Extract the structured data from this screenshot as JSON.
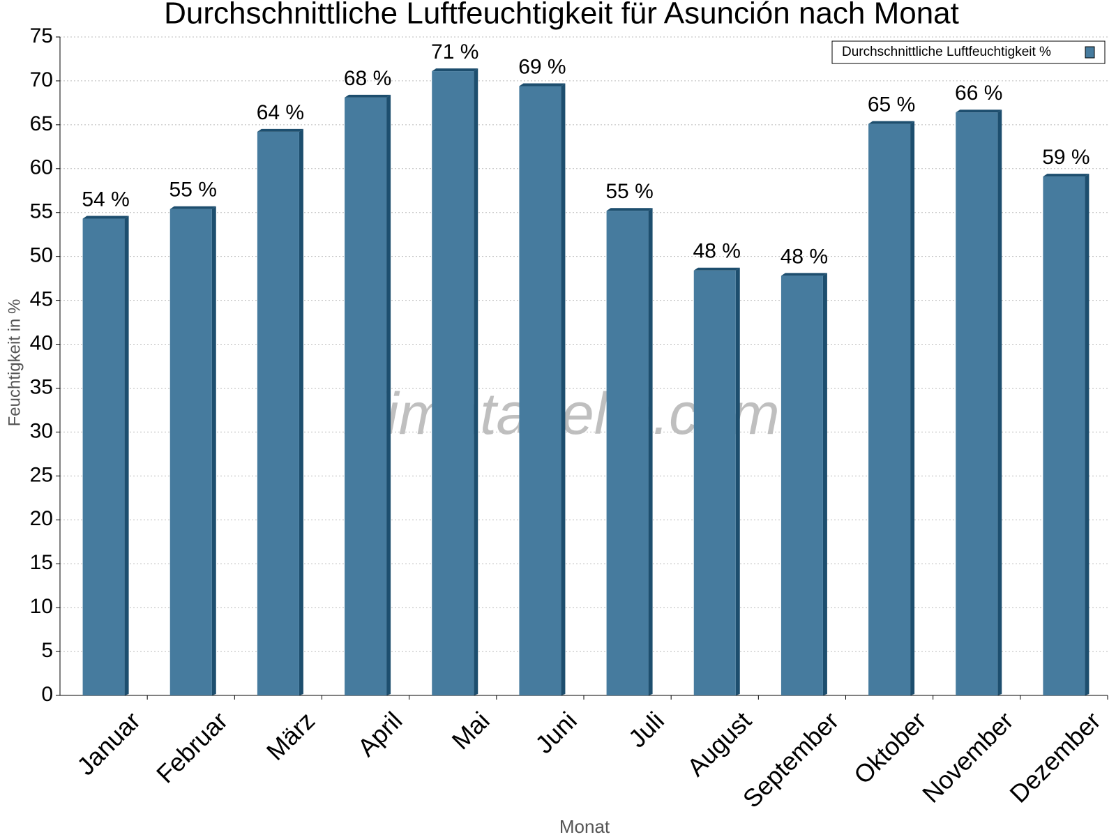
{
  "chart_data": {
    "type": "bar",
    "title": "Durchschnittliche Luftfeuchtigkeit für Asunción nach Monat",
    "watermark": "klimatabelle.com",
    "x_label": "Monat",
    "y_label": "Feuchtigkeit in %",
    "categories": [
      "Januar",
      "Februar",
      "März",
      "April",
      "Mai",
      "Juni",
      "Juli",
      "August",
      "September",
      "Oktober",
      "November",
      "Dezember"
    ],
    "series": [
      {
        "name": "Durchschnittliche Luftfeuchtigkeit %",
        "color": "#467b9e",
        "values": [
          54.3,
          55.4,
          64.2,
          68.1,
          71.1,
          69.4,
          55.2,
          48.4,
          47.8,
          65.1,
          66.4,
          59.1
        ],
        "value_labels": [
          "54 %",
          "55 %",
          "64 %",
          "68 %",
          "71 %",
          "69 %",
          "55 %",
          "48 %",
          "48 %",
          "65 %",
          "66 %",
          "59 %"
        ]
      }
    ],
    "ylim": [
      0,
      75
    ],
    "yticks": [
      0,
      5,
      10,
      15,
      20,
      25,
      30,
      35,
      40,
      45,
      50,
      55,
      60,
      65,
      70,
      75
    ],
    "grid": true,
    "legend": "top-right"
  }
}
